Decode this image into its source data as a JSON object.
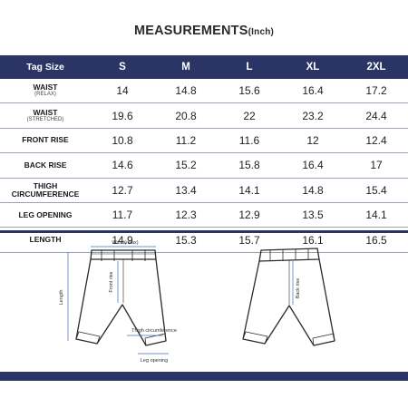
{
  "title": {
    "main": "MEASUREMENTS",
    "unit": "(Inch)"
  },
  "table": {
    "header_label": "Tag Size",
    "sizes": [
      "S",
      "M",
      "L",
      "XL",
      "2XL"
    ],
    "rows": [
      {
        "label": "WAIST",
        "sublabel": "(RELAX)",
        "values": [
          "14",
          "14.8",
          "15.6",
          "16.4",
          "17.2"
        ]
      },
      {
        "label": "WAIST",
        "sublabel": "(STRETCHED)",
        "values": [
          "19.6",
          "20.8",
          "22",
          "23.2",
          "24.4"
        ]
      },
      {
        "label": "FRONT RISE",
        "sublabel": "",
        "values": [
          "10.8",
          "11.2",
          "11.6",
          "12",
          "12.4"
        ]
      },
      {
        "label": "BACK RISE",
        "sublabel": "",
        "values": [
          "14.6",
          "15.2",
          "15.8",
          "16.4",
          "17"
        ]
      },
      {
        "label": "THIGH CIRCUMFERENCE",
        "sublabel": "",
        "values": [
          "12.7",
          "13.4",
          "14.1",
          "14.8",
          "15.4"
        ]
      },
      {
        "label": "LEG OPENING",
        "sublabel": "",
        "values": [
          "11.7",
          "12.3",
          "12.9",
          "13.5",
          "14.1"
        ]
      },
      {
        "label": "LENGTH",
        "sublabel": "",
        "values": [
          "14.9",
          "15.3",
          "15.7",
          "16.1",
          "16.5"
        ]
      }
    ]
  },
  "diagram": {
    "front_labels": {
      "waist": "Waist(relax)",
      "front_rise": "Front rise",
      "length": "Length",
      "thigh": "Thigh circumference",
      "leg_opening": "Leg opening"
    },
    "back_labels": {
      "back_rise": "Back rise"
    }
  },
  "colors": {
    "navy": "#2a3565",
    "measure_blue": "#3a6ec2",
    "outline": "#2b2b2b"
  }
}
